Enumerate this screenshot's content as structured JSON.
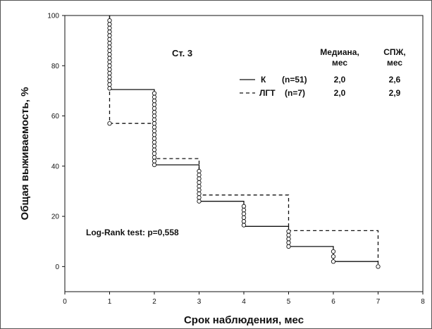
{
  "chart_data": {
    "type": "line",
    "title": "",
    "xlabel": "Срок наблюдения, мес",
    "ylabel": "Общая выживаемость, %",
    "xlim": [
      0,
      8
    ],
    "ylim": [
      -10,
      100
    ],
    "xticks": [
      "0",
      "1",
      "2",
      "3",
      "4",
      "5",
      "6",
      "7",
      "8"
    ],
    "yticks": [
      "0",
      "20",
      "40",
      "60",
      "80",
      "100"
    ],
    "grid": false,
    "step": true,
    "annotations": {
      "stage": "Ст. 3",
      "median_header_1": "Медиана,",
      "median_header_2": "мес",
      "pfs_header_1": "СПЖ,",
      "pfs_header_2": "мес",
      "test": "Log-Rank test: p=0,558"
    },
    "legend_position": "top-right",
    "series": [
      {
        "name": "К",
        "n": "(n=51)",
        "median": "2,0",
        "pfs": "2,6",
        "style": "solid",
        "x": [
          1,
          1,
          2,
          2,
          3,
          3,
          4,
          4,
          5,
          5,
          6,
          6,
          7
        ],
        "y": [
          100,
          70.5,
          70.5,
          40.5,
          40.5,
          26,
          26,
          16,
          16,
          8,
          8,
          2,
          2
        ],
        "censored": [
          [
            1,
            98
          ],
          [
            1,
            96.5
          ],
          [
            1,
            95
          ],
          [
            1,
            93.5
          ],
          [
            1,
            92
          ],
          [
            1,
            90.5
          ],
          [
            1,
            89
          ],
          [
            1,
            87.5
          ],
          [
            1,
            86
          ],
          [
            1,
            84.5
          ],
          [
            1,
            83
          ],
          [
            1,
            81.5
          ],
          [
            1,
            80
          ],
          [
            1,
            78.5
          ],
          [
            1,
            77
          ],
          [
            1,
            75.5
          ],
          [
            1,
            74
          ],
          [
            1,
            72.5
          ],
          [
            1,
            71
          ],
          [
            2,
            69
          ],
          [
            2,
            67.5
          ],
          [
            2,
            66
          ],
          [
            2,
            64.5
          ],
          [
            2,
            63
          ],
          [
            2,
            61.5
          ],
          [
            2,
            60
          ],
          [
            2,
            58.5
          ],
          [
            2,
            57
          ],
          [
            2,
            55.5
          ],
          [
            2,
            54
          ],
          [
            2,
            52.5
          ],
          [
            2,
            51
          ],
          [
            2,
            49.5
          ],
          [
            2,
            48
          ],
          [
            2,
            46.5
          ],
          [
            2,
            45
          ],
          [
            2,
            43.5
          ],
          [
            2,
            42
          ],
          [
            2,
            40.5
          ],
          [
            3,
            38
          ],
          [
            3,
            36.5
          ],
          [
            3,
            35
          ],
          [
            3,
            33.5
          ],
          [
            3,
            32
          ],
          [
            3,
            30.5
          ],
          [
            3,
            29
          ],
          [
            3,
            27.5
          ],
          [
            3,
            26
          ],
          [
            4,
            24
          ],
          [
            4,
            22.5
          ],
          [
            4,
            21
          ],
          [
            4,
            19.5
          ],
          [
            4,
            18
          ],
          [
            4,
            16.5
          ],
          [
            5,
            14
          ],
          [
            5,
            12.5
          ],
          [
            5,
            11
          ],
          [
            5,
            9.5
          ],
          [
            5,
            8
          ],
          [
            6,
            6
          ],
          [
            6,
            4
          ],
          [
            6,
            2
          ],
          [
            7,
            0
          ]
        ]
      },
      {
        "name": "ЛГТ",
        "n": "(n=7)",
        "median": "2,0",
        "pfs": "2,9",
        "style": "dashed",
        "x": [
          1,
          1,
          2,
          2,
          3,
          3,
          5,
          5,
          7,
          7
        ],
        "y": [
          100,
          57,
          57,
          43,
          43,
          28.5,
          28.5,
          14.3,
          14.3,
          0
        ],
        "censored": [
          [
            1,
            57
          ]
        ]
      }
    ]
  }
}
